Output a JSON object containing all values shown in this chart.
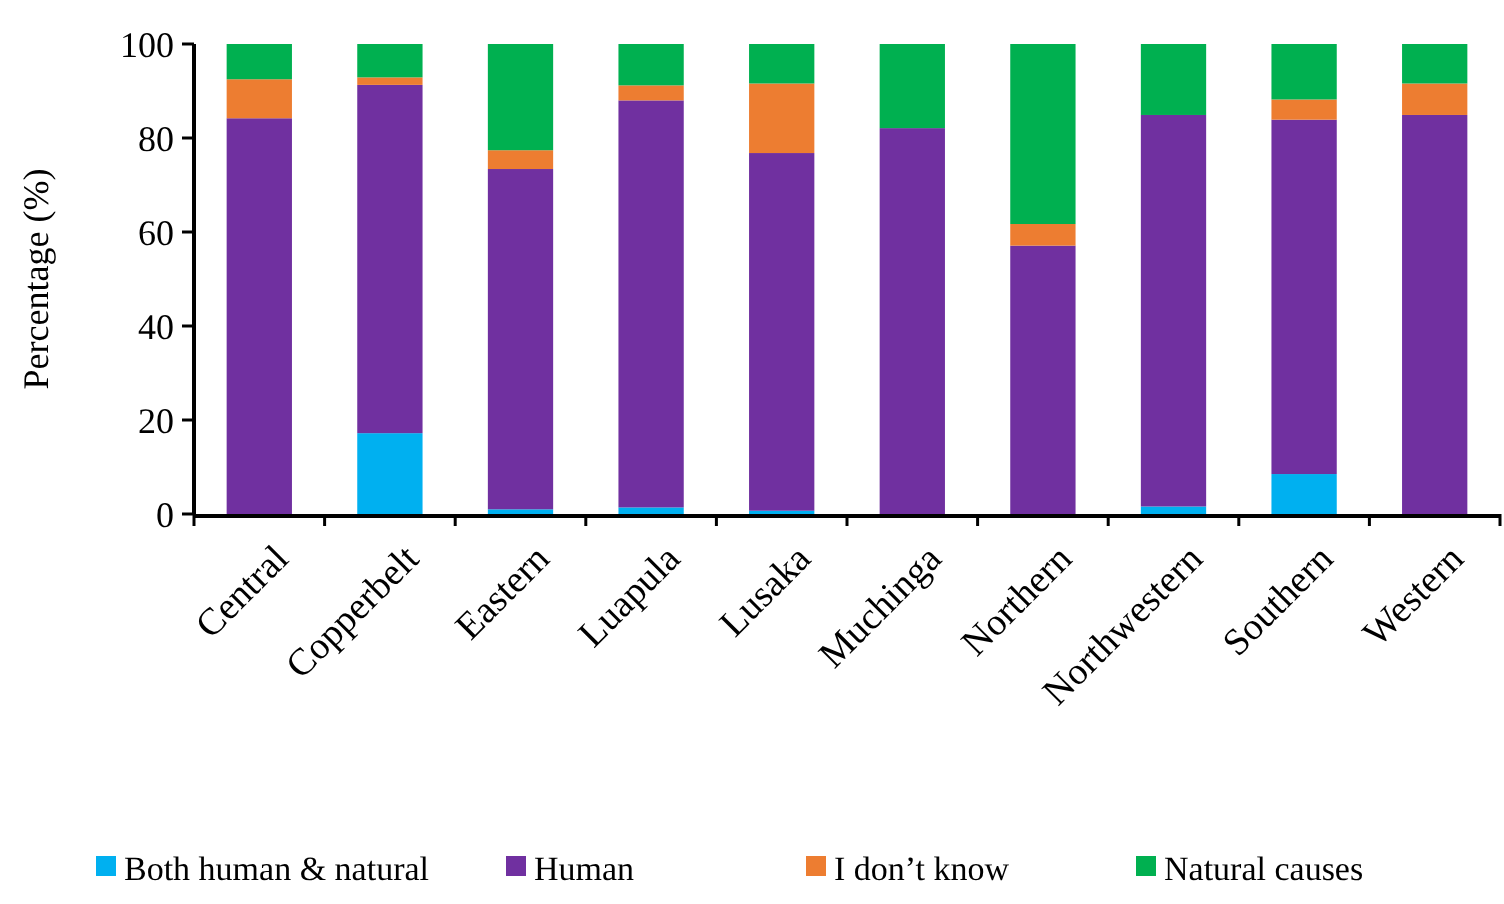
{
  "chart_data": {
    "type": "bar",
    "stacked": true,
    "ylabel": "Percentage (%)",
    "categories": [
      "Central",
      "Copperbelt",
      "Eastern",
      "Luapula",
      "Lusaka",
      "Muchinga",
      "Northern",
      "Northwestern",
      "Southern",
      "Western"
    ],
    "series": [
      {
        "name": "Both human & natural",
        "color": "#00b0f0",
        "values": [
          0,
          17.2,
          1,
          1.4,
          0.7,
          0,
          0,
          1.6,
          8.5,
          0
        ]
      },
      {
        "name": "Human",
        "color": "#7030a0",
        "values": [
          84.2,
          74.1,
          72.4,
          86.6,
          76.1,
          82.1,
          57.1,
          83.3,
          75.4,
          84.9
        ]
      },
      {
        "name": "I don’t know",
        "color": "#ed7d31",
        "values": [
          8.3,
          1.6,
          4,
          3.2,
          14.8,
          0,
          4.6,
          0,
          4.3,
          6.7
        ]
      },
      {
        "name": "Natural causes",
        "color": "#00b050",
        "values": [
          7.5,
          7.1,
          22.6,
          8.8,
          8.4,
          17.9,
          38.3,
          15.1,
          11.8,
          8.4
        ]
      }
    ],
    "ylim": [
      0,
      100
    ],
    "yticks": [
      0,
      20,
      40,
      60,
      80,
      100
    ],
    "grid": false,
    "legend": "bottom"
  }
}
